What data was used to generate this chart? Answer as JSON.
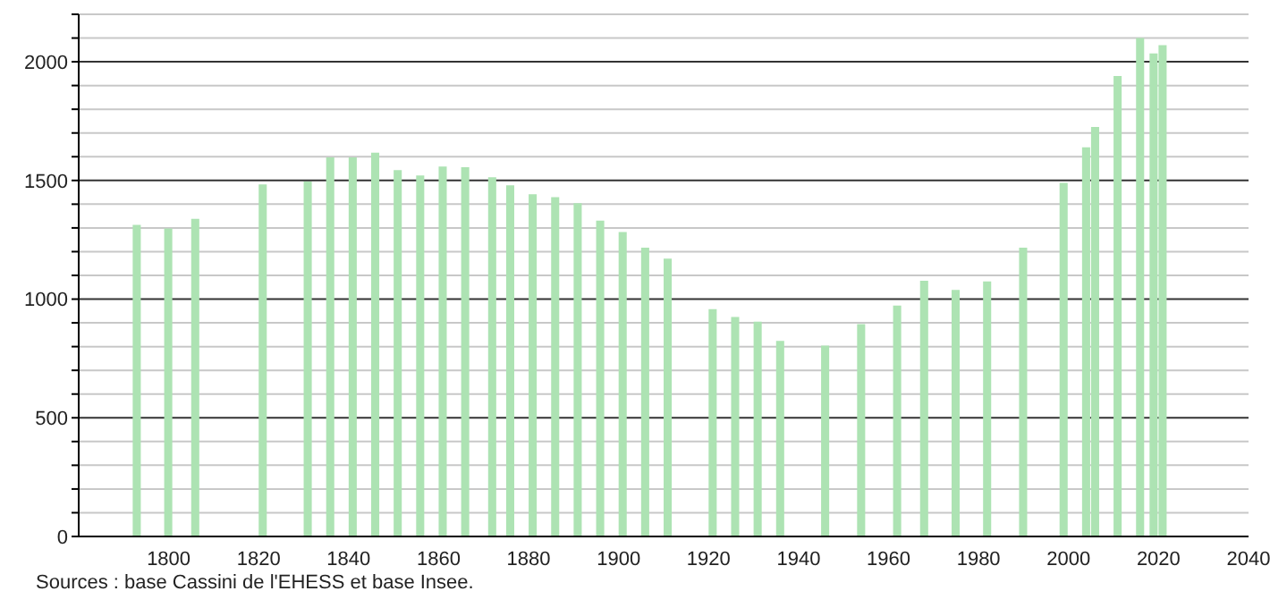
{
  "chart_data": {
    "type": "bar",
    "x": [
      1793,
      1800,
      1806,
      1821,
      1831,
      1836,
      1841,
      1846,
      1851,
      1856,
      1861,
      1866,
      1872,
      1876,
      1881,
      1886,
      1891,
      1896,
      1901,
      1906,
      1911,
      1921,
      1926,
      1931,
      1936,
      1946,
      1954,
      1962,
      1968,
      1975,
      1982,
      1990,
      1999,
      2004,
      2006,
      2011,
      2016,
      2019,
      2021
    ],
    "values": [
      1313,
      1298,
      1338,
      1483,
      1496,
      1597,
      1597,
      1617,
      1544,
      1521,
      1559,
      1556,
      1513,
      1480,
      1442,
      1430,
      1404,
      1331,
      1283,
      1217,
      1171,
      958,
      925,
      905,
      824,
      804,
      895,
      973,
      1077,
      1039,
      1075,
      1217,
      1490,
      1640,
      1725,
      1940,
      2100,
      2035,
      2070
    ],
    "color": "#ade3b3",
    "xlim": [
      1780,
      2040
    ],
    "xticks": [
      1800,
      1820,
      1840,
      1860,
      1880,
      1900,
      1920,
      1940,
      1960,
      1980,
      2000,
      2020,
      2040
    ],
    "ylim": [
      0,
      2200
    ],
    "yticks": [
      0,
      {
        "value": 100,
        "label": null
      },
      {
        "value": 200,
        "label": null
      },
      {
        "value": 300,
        "label": null
      },
      {
        "value": 400,
        "label": null
      },
      500,
      {
        "value": 600,
        "label": null
      },
      {
        "value": 700,
        "label": null
      },
      {
        "value": 800,
        "label": null
      },
      {
        "value": 900,
        "label": null
      },
      1000,
      {
        "value": 1100,
        "label": null
      },
      {
        "value": 1200,
        "label": null
      },
      {
        "value": 1300,
        "label": null
      },
      {
        "value": 1400,
        "label": null
      },
      1500,
      {
        "value": 1600,
        "label": null
      },
      {
        "value": 1700,
        "label": null
      },
      {
        "value": 1800,
        "label": null
      },
      {
        "value": 1900,
        "label": null
      },
      2000,
      {
        "value": 2100,
        "label": null
      },
      {
        "value": 2200,
        "label": null
      }
    ],
    "grid": "y",
    "annotations": [
      "Sources : base Cassini de l'EHESS et base Insee."
    ]
  }
}
